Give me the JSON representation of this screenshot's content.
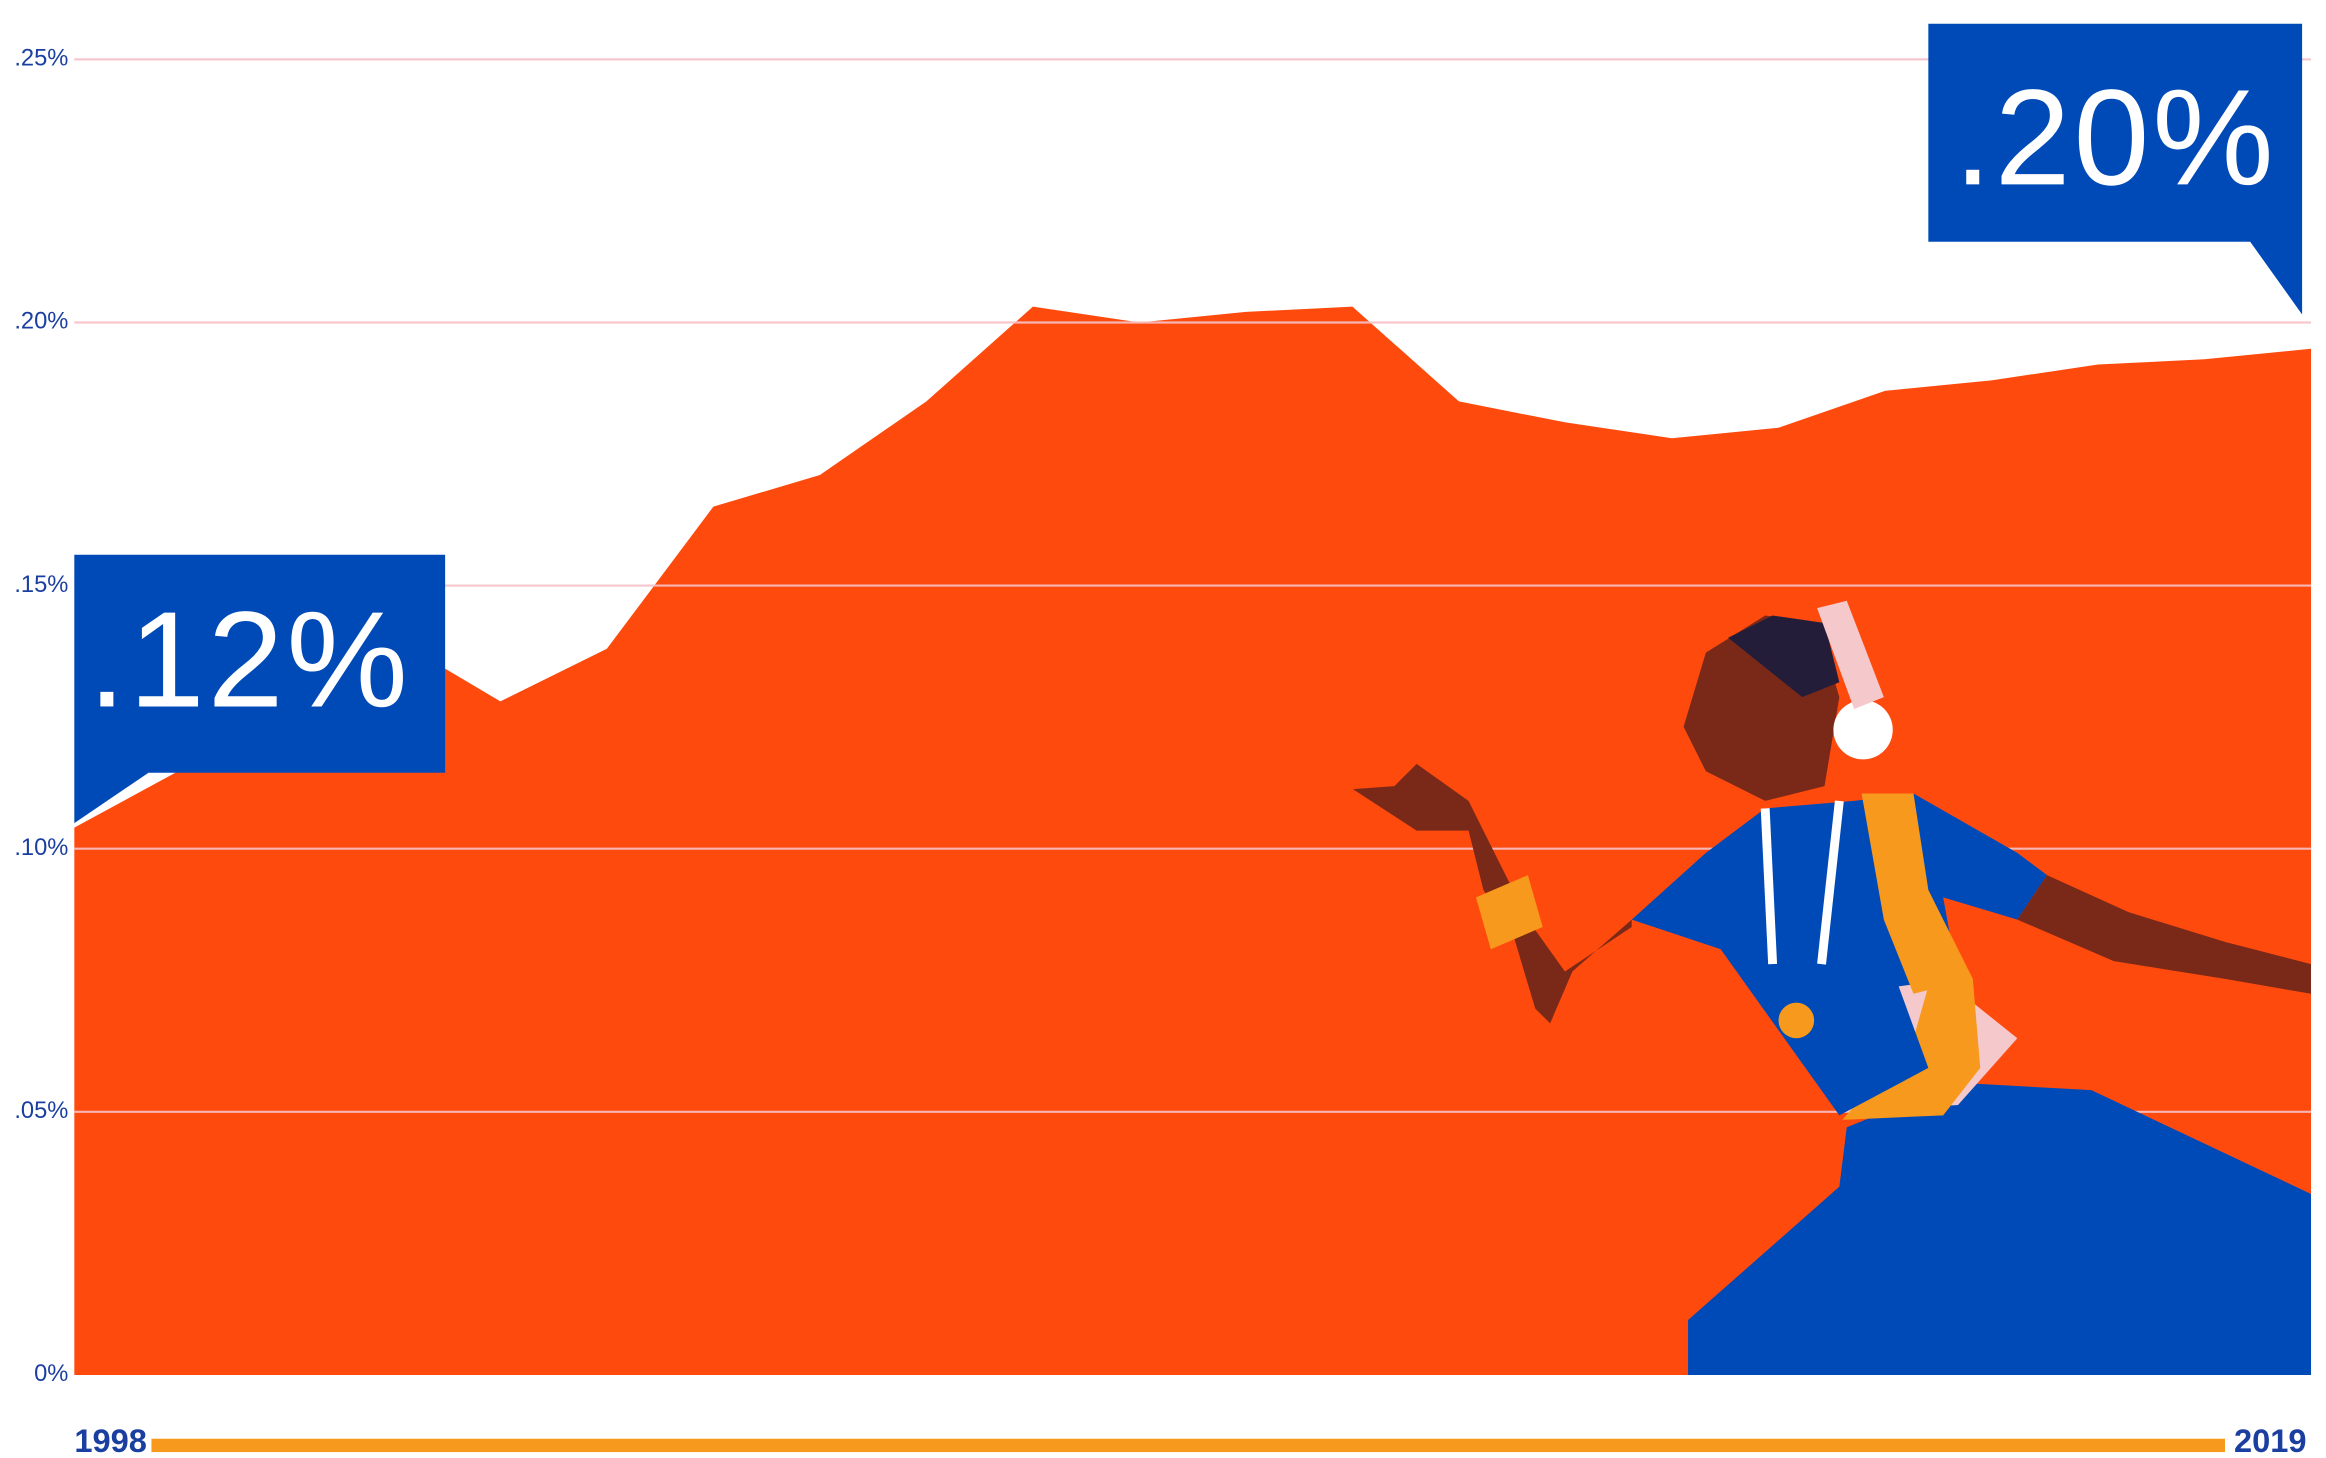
{
  "chart_data": {
    "type": "area",
    "categories": [
      "1998",
      null,
      null,
      null,
      null,
      null,
      null,
      null,
      null,
      null,
      null,
      null,
      null,
      null,
      null,
      null,
      null,
      null,
      null,
      null,
      null,
      "2019"
    ],
    "series": [
      {
        "color": "#ff4a0e",
        "values": [
          0.104,
          0.115,
          0.12,
          0.14,
          0.128,
          0.138,
          0.165,
          0.171,
          0.185,
          0.203,
          0.2,
          0.202,
          0.203,
          0.185,
          0.181,
          0.178,
          0.18,
          0.187,
          0.189,
          0.192,
          0.193,
          0.195
        ]
      }
    ],
    "ylim": [
      0,
      0.25
    ],
    "yticks": [
      {
        "value": 0,
        "label": "0%"
      },
      {
        "value": 0.05,
        "label": ".05%"
      },
      {
        "value": 0.1,
        "label": ".10%"
      },
      {
        "value": 0.15,
        "label": ".15%"
      },
      {
        "value": 0.2,
        "label": ".20%"
      },
      {
        "value": 0.25,
        "label": ".25%"
      }
    ],
    "grid": true,
    "annotations": [
      ".12%",
      ".20%"
    ],
    "annotation_color": "#004ab8",
    "timeline_color": "#f7991c"
  }
}
